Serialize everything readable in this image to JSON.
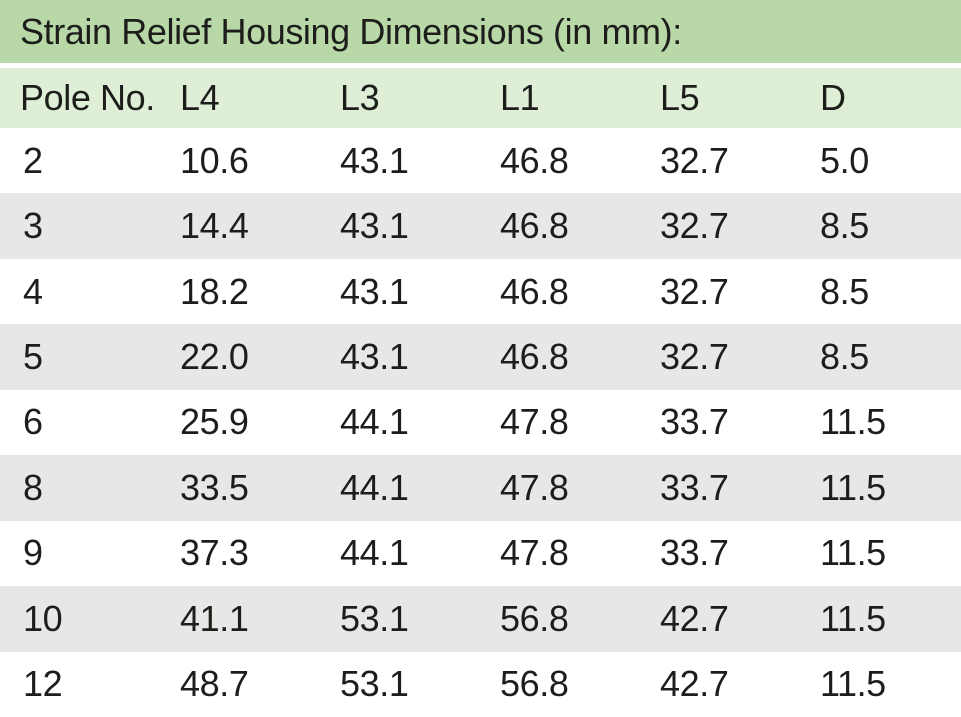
{
  "title": "Strain Relief Housing Dimensions (in mm):",
  "colors": {
    "title_bar_bg": "#b8d9a7",
    "header_row_bg": "#dfeed7",
    "alt_row_bg": "#e9e7e5",
    "row_bg": "#ffffff",
    "text": "#1d1d1b"
  },
  "table": {
    "columns": [
      "Pole No.",
      "L4",
      "L3",
      "L1",
      "L5",
      "D"
    ],
    "rows": [
      [
        "2",
        "10.6",
        "43.1",
        "46.8",
        "32.7",
        "5.0"
      ],
      [
        "3",
        "14.4",
        "43.1",
        "46.8",
        "32.7",
        "8.5"
      ],
      [
        "4",
        "18.2",
        "43.1",
        "46.8",
        "32.7",
        "8.5"
      ],
      [
        "5",
        "22.0",
        "43.1",
        "46.8",
        "32.7",
        "8.5"
      ],
      [
        "6",
        "25.9",
        "44.1",
        "47.8",
        "33.7",
        "11.5"
      ],
      [
        "8",
        "33.5",
        "44.1",
        "47.8",
        "33.7",
        "11.5"
      ],
      [
        "9",
        "37.3",
        "44.1",
        "47.8",
        "33.7",
        "11.5"
      ],
      [
        "10",
        "41.1",
        "53.1",
        "56.8",
        "42.7",
        "11.5"
      ],
      [
        "12",
        "48.7",
        "53.1",
        "56.8",
        "42.7",
        "11.5"
      ]
    ]
  }
}
